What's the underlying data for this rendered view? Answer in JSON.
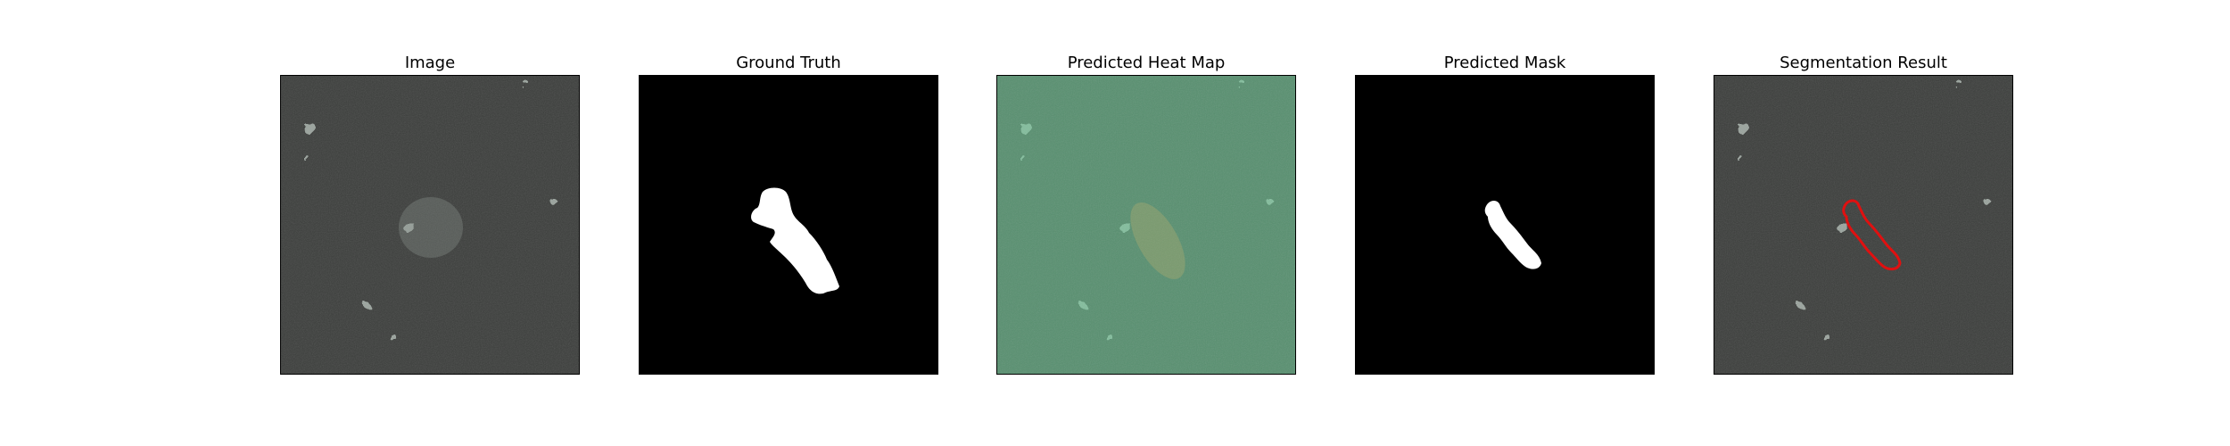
{
  "panels": [
    {
      "title": "Image"
    },
    {
      "title": "Ground Truth"
    },
    {
      "title": "Predicted Heat Map"
    },
    {
      "title": "Predicted Mask"
    },
    {
      "title": "Segmentation Result"
    }
  ],
  "colors": {
    "texture_light": "#9aa39d",
    "texture_dark": "#3a3d3a",
    "mask_background": "#000000",
    "mask_foreground": "#ffffff",
    "heatmap_tint": "#6fd49a",
    "contour": "#e01010"
  }
}
